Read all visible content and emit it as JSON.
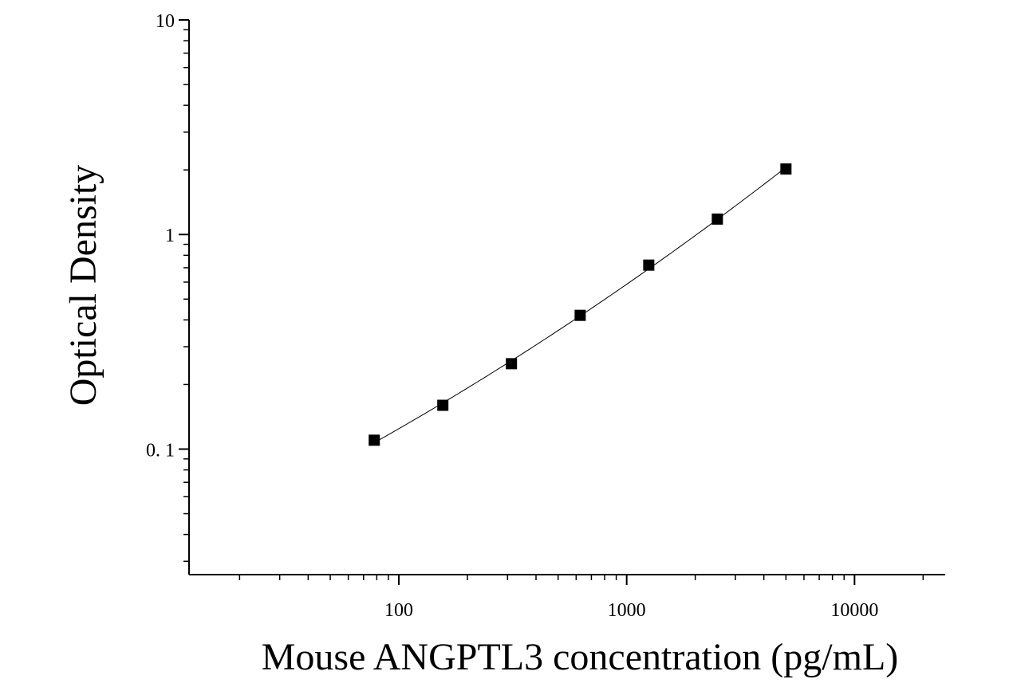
{
  "chart_data": {
    "type": "scatter",
    "title": "",
    "xlabel": "Mouse ANGPTL3 concentration (pg/mL)",
    "ylabel": "Optical Density",
    "x_scale": "log",
    "y_scale": "log",
    "xlim": [
      12,
      25000
    ],
    "ylim": [
      0.026,
      10
    ],
    "x_ticks": [
      {
        "value": 100,
        "label": "100"
      },
      {
        "value": 1000,
        "label": "1000"
      },
      {
        "value": 10000,
        "label": "10000"
      }
    ],
    "y_ticks": [
      {
        "value": 0.1,
        "label": "0. 1"
      },
      {
        "value": 1,
        "label": "1"
      },
      {
        "value": 10,
        "label": "10"
      }
    ],
    "grid": false,
    "legend": "none",
    "marker": "square",
    "colors": {
      "marker": "#000000",
      "line": "#000000",
      "axis": "#000000"
    },
    "series": [
      {
        "x": [
          78,
          156,
          312,
          625,
          1250,
          2500,
          5000
        ],
        "y": [
          0.11,
          0.16,
          0.25,
          0.42,
          0.72,
          1.18,
          2.02
        ]
      }
    ]
  }
}
